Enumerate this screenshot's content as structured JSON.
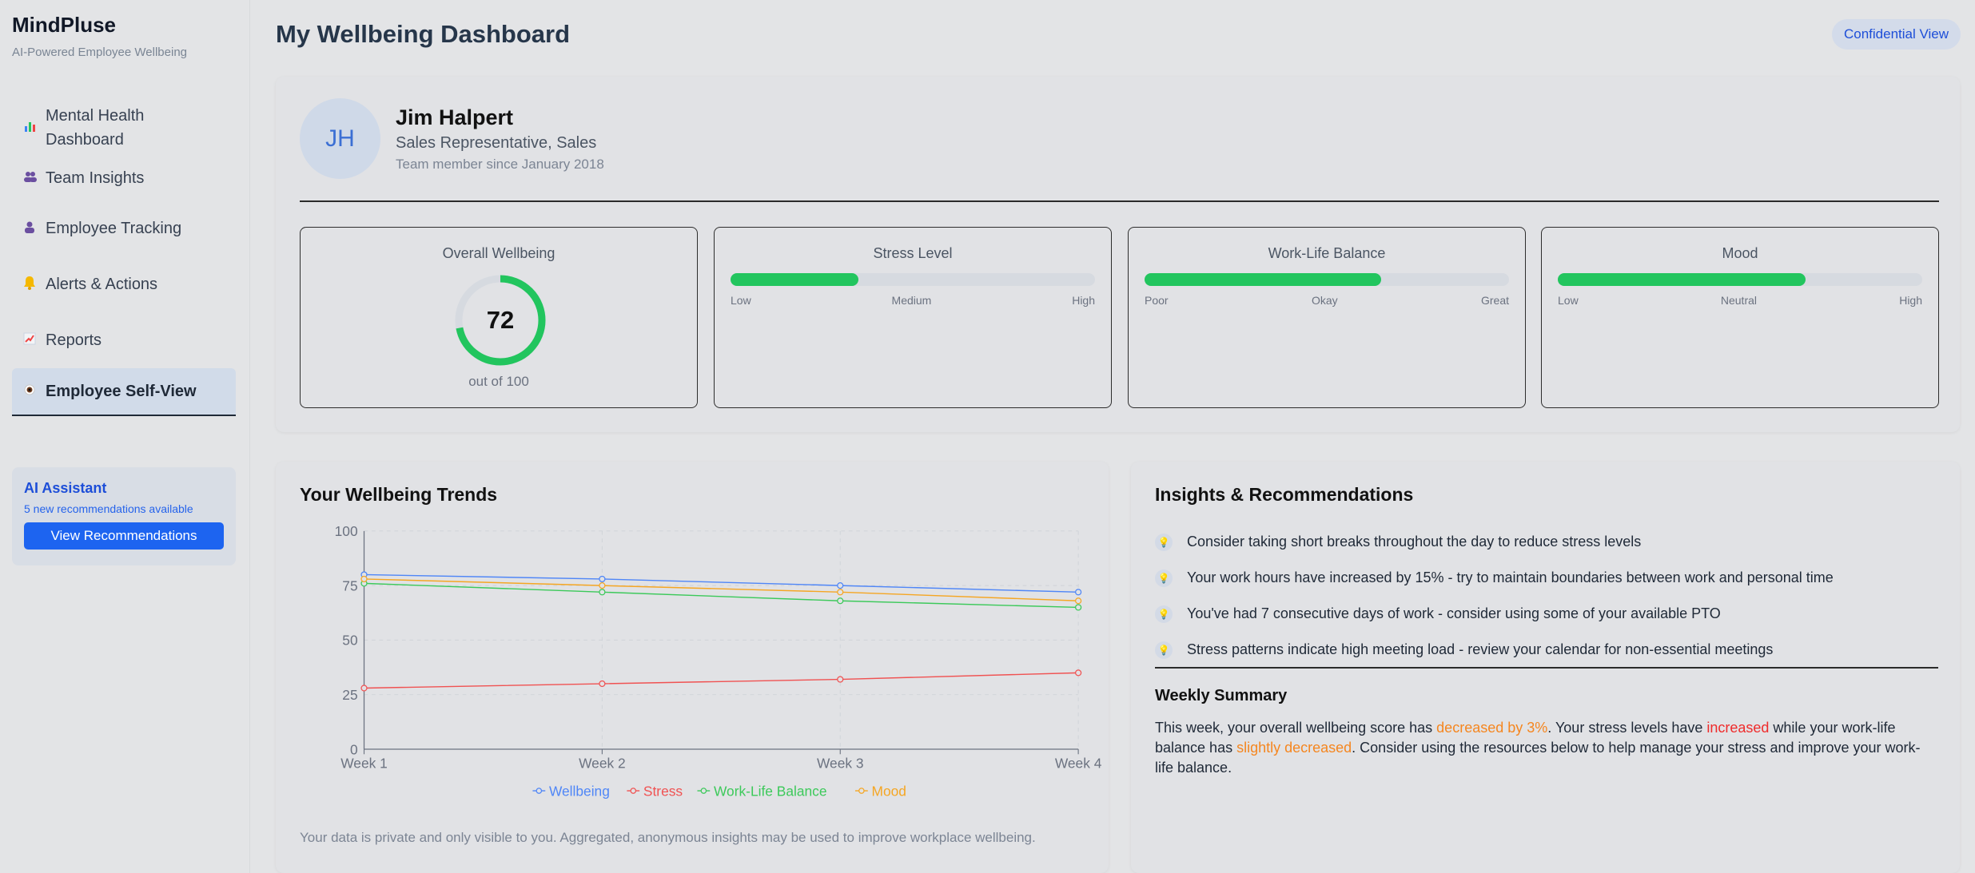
{
  "brand": {
    "title": "MindPluse",
    "subtitle": "AI-Powered Employee Wellbeing"
  },
  "sidebar": {
    "items": [
      {
        "icon": "bar-chart-icon",
        "label_1": "Mental Health",
        "label_2": "Dashboard",
        "active": false
      },
      {
        "icon": "people-icon",
        "label": "Team Insights",
        "active": false
      },
      {
        "icon": "person-icon",
        "label": "Employee Tracking",
        "active": false
      },
      {
        "icon": "bell-icon",
        "label": "Alerts & Actions",
        "active": false
      },
      {
        "icon": "chart-up-icon",
        "label": "Reports",
        "active": false
      },
      {
        "icon": "eye-icon",
        "label": "Employee Self-View",
        "active": true
      }
    ],
    "ai": {
      "title": "AI Assistant",
      "subtitle": "5 new recommendations available",
      "button": "View Recommendations"
    }
  },
  "header": {
    "title": "My Wellbeing Dashboard",
    "badge": "Confidential View"
  },
  "profile": {
    "initials": "JH",
    "name": "Jim Halpert",
    "role": "Sales Representative, Sales",
    "since": "Team member since January 2018"
  },
  "metrics": {
    "overall": {
      "title": "Overall Wellbeing",
      "value": "72",
      "caption": "out of 100",
      "fraction": 0.72
    },
    "stress": {
      "title": "Stress Level",
      "fill_pct": 35,
      "labels": [
        "Low",
        "Medium",
        "High"
      ]
    },
    "balance": {
      "title": "Work-Life Balance",
      "fill_pct": 65,
      "labels": [
        "Poor",
        "Okay",
        "Great"
      ]
    },
    "mood": {
      "title": "Mood",
      "fill_pct": 68,
      "labels": [
        "Low",
        "Neutral",
        "High"
      ]
    }
  },
  "trends": {
    "title": "Your Wellbeing Trends",
    "privacy": "Your data is private and only visible to you. Aggregated, anonymous insights may be used to improve workplace wellbeing."
  },
  "chart_data": {
    "type": "line",
    "categories": [
      "Week 1",
      "Week 2",
      "Week 3",
      "Week 4"
    ],
    "ylim": [
      0,
      100
    ],
    "yticks": [
      0,
      25,
      50,
      75,
      100
    ],
    "grid": true,
    "legend_position": "bottom",
    "series": [
      {
        "name": "Wellbeing",
        "color": "#4f86f7",
        "values": [
          80,
          78,
          75,
          72
        ]
      },
      {
        "name": "Stress",
        "color": "#f05252",
        "values": [
          28,
          30,
          32,
          35
        ]
      },
      {
        "name": "Work-Life Balance",
        "color": "#3cc95a",
        "values": [
          76,
          72,
          68,
          65
        ]
      },
      {
        "name": "Mood",
        "color": "#f5a623",
        "values": [
          78,
          75,
          72,
          68
        ]
      }
    ]
  },
  "insights": {
    "title": "Insights & Recommendations",
    "items": [
      "Consider taking short breaks throughout the day to reduce stress levels",
      "Your work hours have increased by 15% - try to maintain boundaries between work and personal time",
      "You've had 7 consecutive days of work - consider using some of your available PTO",
      "Stress patterns indicate high meeting load - review your calendar for non-essential meetings"
    ],
    "summary_title": "Weekly Summary",
    "summary": {
      "p1": "This week, your overall wellbeing score has ",
      "h1": "decreased by 3%",
      "p2": ". Your stress levels have ",
      "h2": "increased",
      "p3": " while your work-life balance has ",
      "h3": "slightly decreased",
      "p4": ". Consider using the resources below to help manage your stress and improve your work-life balance."
    }
  },
  "colors": {
    "accent": "#1d64f0",
    "good": "#22c55e",
    "warn": "#f5861f",
    "bad": "#ef2b2b"
  }
}
